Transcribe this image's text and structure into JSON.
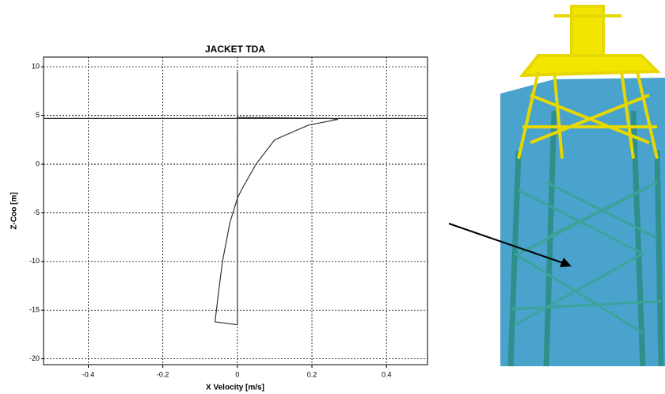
{
  "chart_data": {
    "type": "line",
    "title": "JACKET TDA",
    "x_label": "X Velocity [m/s]",
    "y_label": "Z-Coo [m]",
    "series": [
      {
        "color": "#333333",
        "x": [
          0,
          0.25,
          0.27,
          0.19,
          0.1,
          0.05,
          0.013,
          0,
          -0.02,
          -0.04,
          -0.05,
          -0.06,
          0
        ],
        "values": [
          4.8,
          4.7,
          4.6,
          4,
          2.5,
          0,
          -2.5,
          -3.5,
          -6,
          -10,
          -13,
          -16.2,
          -16.5
        ]
      },
      {
        "color": "#333333",
        "x": [
          0,
          0
        ],
        "values": [
          9.5,
          -16.5
        ]
      },
      {
        "color": "#333333",
        "x": [
          -0.52,
          0.51
        ],
        "values": [
          4.7,
          4.7
        ]
      }
    ],
    "xlim": [
      -0.52,
      0.51
    ],
    "ylim": [
      -20.6,
      11
    ],
    "xticks": [
      -0.4,
      -0.2,
      0,
      0.2,
      0.4
    ],
    "yticks": [
      -20,
      -15,
      -10,
      -5,
      0,
      5,
      10
    ],
    "grid": true
  }
}
